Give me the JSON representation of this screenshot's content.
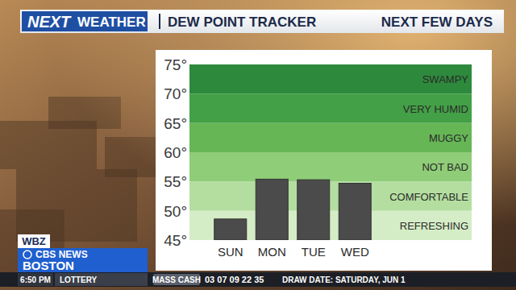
{
  "header": {
    "logo_top": "NEXT",
    "logo_bottom": "WEATHER"
  },
  "chart_data": {
    "type": "bar",
    "title": "DEW POINT TRACKER",
    "subtitle": "NEXT FEW DAYS",
    "categories": [
      "SUN",
      "MON",
      "TUE",
      "WED"
    ],
    "values": [
      48.6,
      55.4,
      55.3,
      54.7
    ],
    "color": "#4b4b4b",
    "ylim": [
      45,
      75
    ],
    "yticks": [
      {
        "value": 45,
        "label": "45°"
      },
      {
        "value": 50,
        "label": "50°"
      },
      {
        "value": 55,
        "label": "55°"
      },
      {
        "value": 60,
        "label": "60°"
      },
      {
        "value": 65,
        "label": "65°"
      },
      {
        "value": 70,
        "label": "70°"
      },
      {
        "value": 75,
        "label": "75°"
      }
    ],
    "grid": false,
    "bands": [
      {
        "label": "REFRESHING",
        "from": 45,
        "to": 50,
        "color": "#d5edc6"
      },
      {
        "label": "COMFORTABLE",
        "from": 50,
        "to": 55,
        "color": "#b4dea0"
      },
      {
        "label": "NOT BAD",
        "from": 55,
        "to": 60,
        "color": "#8fcd78"
      },
      {
        "label": "MUGGY",
        "from": 60,
        "to": 65,
        "color": "#66b656"
      },
      {
        "label": "VERY HUMID",
        "from": 65,
        "to": 70,
        "color": "#43a046"
      },
      {
        "label": "SWAMPY",
        "from": 70,
        "to": 75,
        "color": "#2d8a3c"
      }
    ]
  },
  "footer": {
    "station": "WBZ",
    "network": "CBS NEWS",
    "city": "BOSTON",
    "time": "6:50 PM",
    "segment": "LOTTERY",
    "game": "MASS CASH",
    "numbers": "03 07 09 22 35",
    "draw_date": "DRAW DATE: SATURDAY, JUN 1"
  }
}
